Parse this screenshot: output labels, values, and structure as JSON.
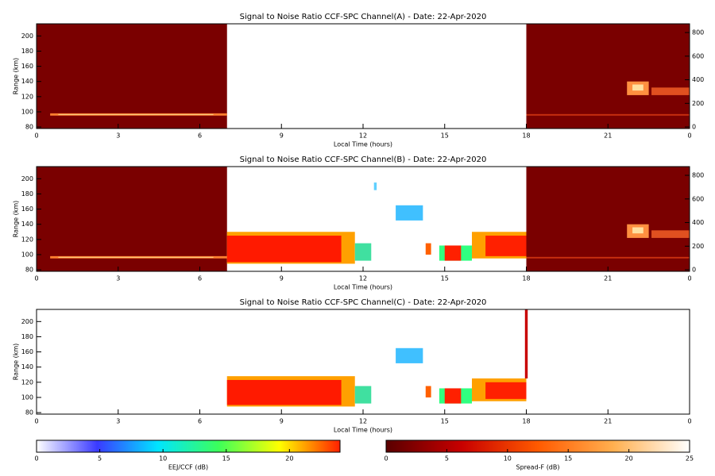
{
  "chart_data": [
    {
      "type": "heatmap",
      "title": "Signal to Noise Ratio CCF-SPC Channel(A) - Date: 22-Apr-2020",
      "xlabel": "Local Time (hours)",
      "ylabel": "Range (km)",
      "xlim": [
        0,
        24
      ],
      "xticks": [
        0,
        3,
        6,
        9,
        12,
        15,
        18,
        21,
        {
          "value": 24,
          "label": "0"
        }
      ],
      "ylim": [
        78,
        216
      ],
      "yticks": [
        80,
        100,
        120,
        140,
        160,
        180,
        200
      ],
      "y2lim": [
        -13,
        874
      ],
      "y2ticks": [
        0,
        200,
        400,
        600,
        800
      ]
    },
    {
      "type": "heatmap",
      "title": "Signal to Noise Ratio CCF-SPC Channel(B) - Date: 22-Apr-2020",
      "xlabel": "Local Time (hours)",
      "ylabel": "Range (km)",
      "xlim": [
        0,
        24
      ],
      "xticks": [
        0,
        3,
        6,
        9,
        12,
        15,
        18,
        21,
        {
          "value": 24,
          "label": "0"
        }
      ],
      "ylim": [
        78,
        216
      ],
      "yticks": [
        80,
        100,
        120,
        140,
        160,
        180,
        200
      ],
      "y2lim": [
        -13,
        874
      ],
      "y2ticks": [
        0,
        200,
        400,
        600,
        800
      ]
    },
    {
      "type": "heatmap",
      "title": "Signal to Noise Ratio CCF-SPC Channel(C) - Date: 22-Apr-2020",
      "xlabel": "Local Time (hours)",
      "ylabel": "Range (km)",
      "xlim": [
        0,
        24
      ],
      "xticks": [
        0,
        3,
        6,
        9,
        12,
        15,
        18,
        21,
        {
          "value": 24,
          "label": "0"
        }
      ],
      "ylim": [
        78,
        216
      ],
      "yticks": [
        80,
        100,
        120,
        140,
        160,
        180,
        200
      ]
    },
    {
      "type": "colorbar",
      "label": "EEJ/CCF (dB)",
      "xlim": [
        0,
        24
      ],
      "xticks": [
        0,
        5,
        10,
        15,
        20
      ],
      "colors": [
        "#ffffff",
        "#3a3aff",
        "#00e5ff",
        "#3cff5a",
        "#ffff00",
        "#ff2000"
      ]
    },
    {
      "type": "colorbar",
      "label": "Spread-F (dB)",
      "xlim": [
        0,
        25
      ],
      "xticks": [
        0,
        5,
        10,
        15,
        20,
        25
      ],
      "colors": [
        "#5a0000",
        "#c80000",
        "#ff5a00",
        "#ffb050",
        "#ffffff"
      ]
    }
  ]
}
